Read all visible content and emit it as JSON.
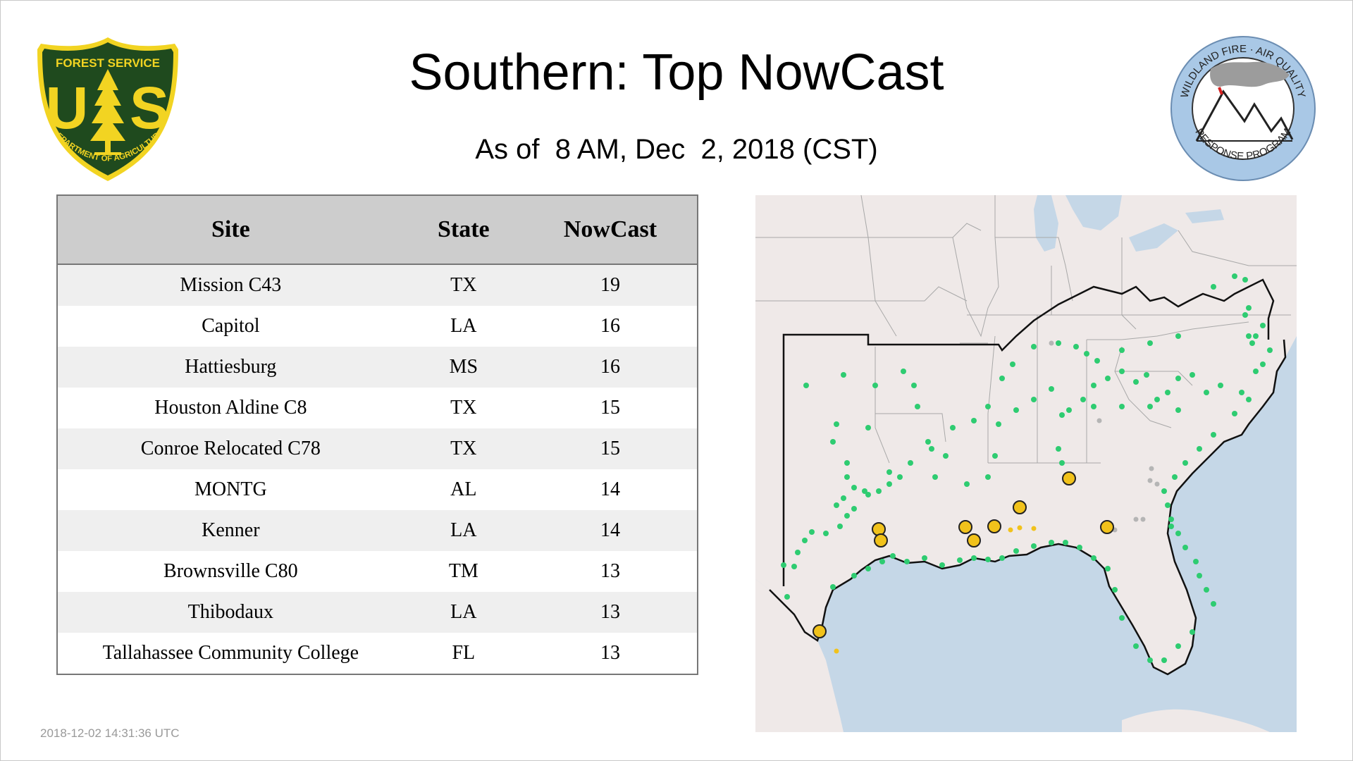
{
  "title": "Southern: Top NowCast",
  "subtitle": "As of  8 AM, Dec  2, 2018 (CST)",
  "logos": {
    "left": {
      "icon": "forest-service-shield-icon",
      "top_text": "FOREST SERVICE",
      "letters_left": "U",
      "letters_right": "S",
      "bottom_text": "DEPARTMENT OF AGRICULTURE"
    },
    "right": {
      "icon": "wildland-fire-air-quality-icon",
      "top_text": "WILDLAND FIRE · AIR QUALITY",
      "bottom_text": "RESPONSE PROGRAM"
    }
  },
  "table": {
    "headers": {
      "site": "Site",
      "state": "State",
      "nowcast": "NowCast"
    },
    "rows": [
      {
        "site": "Mission C43",
        "state": "TX",
        "nowcast": "19"
      },
      {
        "site": "Capitol",
        "state": "LA",
        "nowcast": "16"
      },
      {
        "site": "Hattiesburg",
        "state": "MS",
        "nowcast": "16"
      },
      {
        "site": "Houston Aldine C8",
        "state": "TX",
        "nowcast": "15"
      },
      {
        "site": "Conroe Relocated C78",
        "state": "TX",
        "nowcast": "15"
      },
      {
        "site": "MONTG",
        "state": "AL",
        "nowcast": "14"
      },
      {
        "site": "Kenner",
        "state": "LA",
        "nowcast": "14"
      },
      {
        "site": "Brownsville C80",
        "state": "TM",
        "nowcast": "13"
      },
      {
        "site": "Thibodaux",
        "state": "LA",
        "nowcast": "13"
      },
      {
        "site": "Tallahassee Community College",
        "state": "FL",
        "nowcast": "13"
      }
    ]
  },
  "map": {
    "icon": "southern-region-monitor-map",
    "colors": {
      "land": "#efe9e8",
      "water": "#c5d7e7",
      "good": "#2ecc71",
      "moderate": "#f1c21b",
      "nodata": "#b5b5b5"
    }
  },
  "timestamp": "2018-12-02 14:31:36 UTC"
}
